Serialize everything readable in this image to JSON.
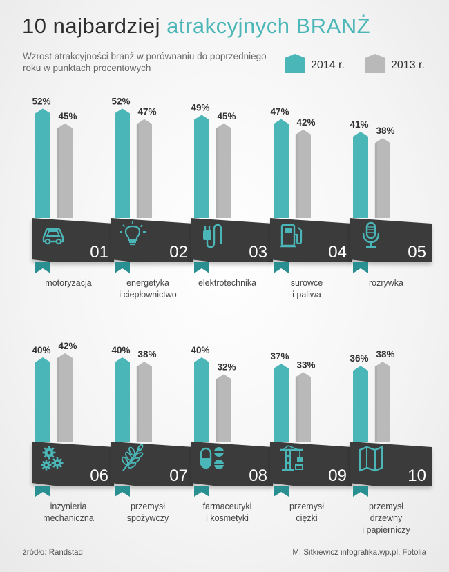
{
  "title": {
    "part1": "10 najbardziej",
    "part2": "atrakcyjnych BRANŻ"
  },
  "subtitle": "Wzrost atrakcyjności branż w porównaniu do poprzedniego roku w punktach procentowych",
  "colors": {
    "s2014": "#4bb6b7",
    "s2013": "#b9b9b9",
    "panel": "#3a3a3a",
    "ribbon": "#2a8f90",
    "icon": "#4bb6b7"
  },
  "source": "źródło: Randstad",
  "credit": "M. Sitkiewicz infografika.wp.pl, Fotolia",
  "chart_data": {
    "type": "bar",
    "categories": [
      {
        "number": "01",
        "label": [
          "motoryzacja"
        ],
        "icon": "car-icon"
      },
      {
        "number": "02",
        "label": [
          "energetyka",
          "i ciepłownictwo"
        ],
        "icon": "lightbulb-icon"
      },
      {
        "number": "03",
        "label": [
          "elektrotechnika"
        ],
        "icon": "plug-icon"
      },
      {
        "number": "04",
        "label": [
          "surowce",
          "i paliwa"
        ],
        "icon": "fuel-pump-icon"
      },
      {
        "number": "05",
        "label": [
          "rozrywka"
        ],
        "icon": "microphone-icon"
      },
      {
        "number": "06",
        "label": [
          "inżynieria",
          "mechaniczna"
        ],
        "icon": "gears-icon"
      },
      {
        "number": "07",
        "label": [
          "przemysł",
          "spożywczy"
        ],
        "icon": "wheat-icon"
      },
      {
        "number": "08",
        "label": [
          "farmaceutyki",
          "i kosmetyki"
        ],
        "icon": "pills-icon"
      },
      {
        "number": "09",
        "label": [
          "przemysł",
          "ciężki"
        ],
        "icon": "crane-icon"
      },
      {
        "number": "10",
        "label": [
          "przemysł",
          "drzewny",
          "i papierniczy"
        ],
        "icon": "map-icon"
      }
    ],
    "series": [
      {
        "name": "2014 r.",
        "values": [
          52,
          52,
          49,
          47,
          41,
          40,
          40,
          40,
          37,
          36
        ]
      },
      {
        "name": "2013 r.",
        "values": [
          45,
          47,
          45,
          42,
          38,
          42,
          38,
          32,
          33,
          38
        ]
      }
    ],
    "value_suffix": "%",
    "legend": "top-right"
  }
}
